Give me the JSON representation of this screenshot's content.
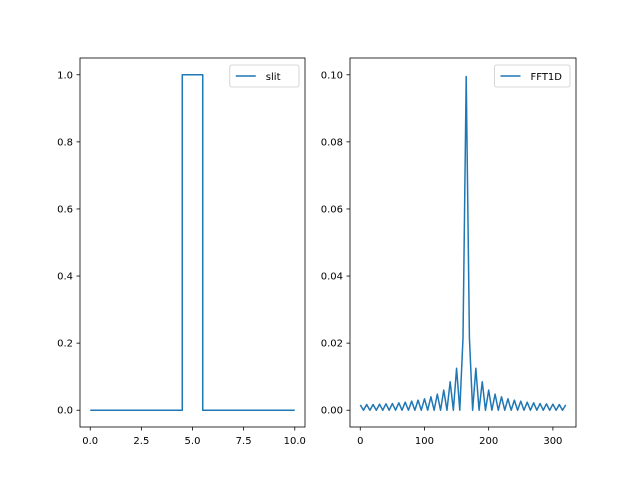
{
  "chart_data": [
    {
      "type": "line",
      "title": "",
      "xlabel": "",
      "ylabel": "",
      "xlim": [
        -0.5,
        10.5
      ],
      "ylim": [
        -0.05,
        1.05
      ],
      "xticks": [
        0,
        2.5,
        5,
        7.5,
        10
      ],
      "xtick_labels": [
        "0.0",
        "2.5",
        "5.0",
        "7.5",
        "10.0"
      ],
      "yticks": [
        0,
        0.2,
        0.4,
        0.6,
        0.8,
        1.0
      ],
      "ytick_labels": [
        "0.0",
        "0.2",
        "0.4",
        "0.6",
        "0.8",
        "1.0"
      ],
      "grid": false,
      "legend": "upper right",
      "series": [
        {
          "name": "slit",
          "color": "#1f77b4",
          "x": [
            0,
            4.5,
            4.5,
            5.5,
            5.5,
            10
          ],
          "y": [
            0,
            0,
            1,
            1,
            0,
            0
          ]
        }
      ]
    },
    {
      "type": "line",
      "title": "",
      "xlabel": "",
      "ylabel": "",
      "xlim": [
        -16,
        336
      ],
      "ylim": [
        -0.005,
        0.105
      ],
      "xticks": [
        0,
        100,
        200,
        300
      ],
      "xtick_labels": [
        "0",
        "100",
        "200",
        "300"
      ],
      "yticks": [
        0,
        0.02,
        0.04,
        0.06,
        0.08,
        0.1
      ],
      "ytick_labels": [
        "0.00",
        "0.02",
        "0.04",
        "0.06",
        "0.08",
        "0.10"
      ],
      "grid": false,
      "legend": "upper right",
      "series": [
        {
          "name": "FFT1D",
          "color": "#1f77b4",
          "x": [
            0,
            5,
            10,
            15,
            20,
            25,
            30,
            35,
            40,
            45,
            50,
            55,
            60,
            65,
            70,
            75,
            80,
            85,
            90,
            95,
            100,
            105,
            110,
            115,
            120,
            125,
            130,
            135,
            140,
            145,
            150,
            155,
            160,
            165,
            170,
            175,
            180,
            185,
            190,
            195,
            200,
            205,
            210,
            215,
            220,
            225,
            230,
            235,
            240,
            245,
            250,
            255,
            260,
            265,
            270,
            275,
            280,
            285,
            290,
            295,
            300,
            305,
            310,
            315,
            320
          ],
          "y": [
            0.0016,
            0,
            0.0017,
            0,
            0.0017,
            0,
            0.0018,
            0,
            0.0019,
            0,
            0.002,
            0,
            0.0022,
            0,
            0.0024,
            0,
            0.0027,
            0,
            0.003,
            0,
            0.0034,
            0,
            0.004,
            0,
            0.0048,
            0,
            0.006,
            0,
            0.0085,
            0,
            0.0125,
            0,
            0.0215,
            0.0995,
            0.0215,
            0,
            0.0125,
            0,
            0.0085,
            0,
            0.006,
            0,
            0.0048,
            0,
            0.004,
            0,
            0.0034,
            0,
            0.003,
            0,
            0.0027,
            0,
            0.0024,
            0,
            0.0022,
            0,
            0.002,
            0,
            0.0019,
            0,
            0.0018,
            0,
            0.0017,
            0,
            0.0016
          ]
        }
      ]
    }
  ]
}
